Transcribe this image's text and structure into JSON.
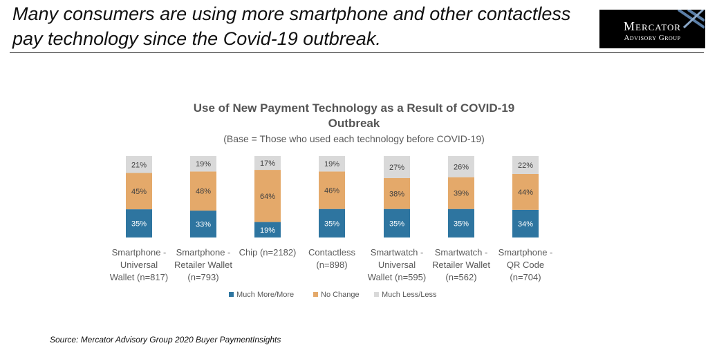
{
  "slide": {
    "title_line1": "Many consumers are using more smartphone and other contactless",
    "title_line2": "pay technology since the Covid-19 outbreak.",
    "source": "Source: Mercator Advisory Group 2020 Buyer PaymentInsights"
  },
  "logo": {
    "line1": "Mercator",
    "line2": "Advisory Group",
    "accent": "#8aa7c8"
  },
  "chart_data": {
    "type": "bar",
    "stacked": true,
    "title_line1": "Use of New Payment Technology as a Result of COVID-19",
    "title_line2": "Outbreak",
    "subtitle": "(Base = Those who used each technology before COVID-19)",
    "categories": [
      [
        "Smartphone -",
        "Universal",
        "Wallet (n=817)"
      ],
      [
        "Smartphone -",
        "Retailer Wallet",
        "(n=793)"
      ],
      [
        "Chip (n=2182)"
      ],
      [
        "Contactless",
        "(n=898)"
      ],
      [
        "Smartwatch -",
        "Universal",
        "Wallet (n=595)"
      ],
      [
        "Smartwatch -",
        "Retailer Wallet",
        "(n=562)"
      ],
      [
        "Smartphone -",
        "QR Code",
        "(n=704)"
      ]
    ],
    "series": [
      {
        "name": "Much More/More",
        "color": "#2e75a0",
        "values": [
          35,
          33,
          19,
          35,
          35,
          35,
          34
        ],
        "labels": [
          "35%",
          "33%",
          "19%",
          "35%",
          "35%",
          "35%",
          "34%"
        ]
      },
      {
        "name": "No Change",
        "color": "#e4a96a",
        "values": [
          45,
          48,
          64,
          46,
          38,
          39,
          44
        ],
        "labels": [
          "45%",
          "48%",
          "64%",
          "46%",
          "38%",
          "39%",
          "44%"
        ]
      },
      {
        "name": "Much Less/Less",
        "color": "#d9d9d9",
        "values": [
          21,
          19,
          17,
          19,
          27,
          26,
          22
        ],
        "labels": [
          "21%",
          "19%",
          "17%",
          "19%",
          "27%",
          "26%",
          "22%"
        ]
      }
    ],
    "ylim": [
      0,
      100
    ],
    "grid": false,
    "legend": "bottom"
  }
}
